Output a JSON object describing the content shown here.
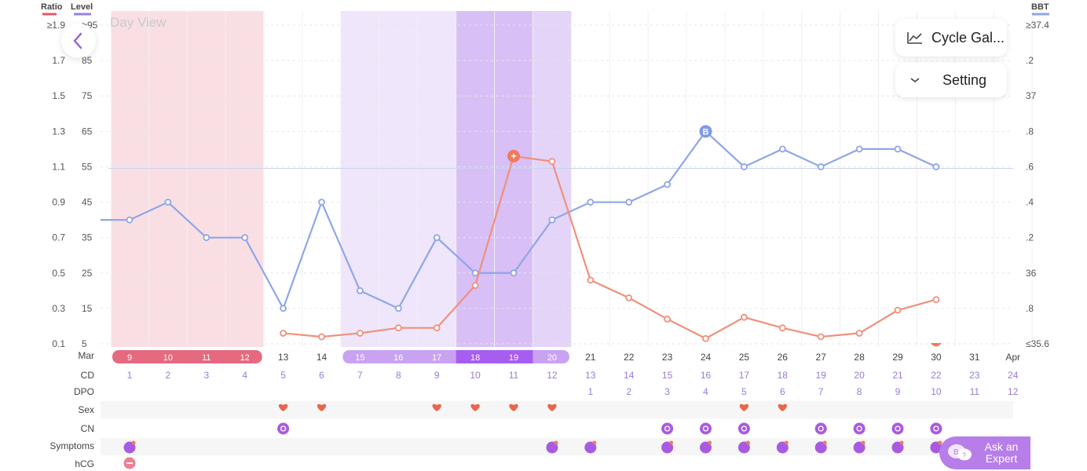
{
  "view_label": "Day View",
  "buttons": {
    "cycle_gallery": "Cycle Gal...",
    "setting": "Setting",
    "ask_expert": "Ask an Expert"
  },
  "axis_headers": {
    "ratio": "Ratio",
    "level": "Level",
    "bbt": "BBT"
  },
  "colors": {
    "ratio": "#f0907a",
    "level": "#9a80e0",
    "bbt": "#8fa6e6",
    "period": "#e5697f",
    "fertile": "#c9a3f2",
    "peak": "#a75df0"
  },
  "row_labels": {
    "date": "Mar",
    "cd": "CD",
    "dpo": "DPO",
    "sex": "Sex",
    "cn": "CN",
    "symptoms": "Symptoms",
    "hcg": "hCG"
  },
  "chart_data": {
    "type": "line",
    "x": [
      "Mar 9",
      "Mar 10",
      "Mar 11",
      "Mar 12",
      "Mar 13",
      "Mar 14",
      "Mar 15",
      "Mar 16",
      "Mar 17",
      "Mar 18",
      "Mar 19",
      "Mar 20",
      "Mar 21",
      "Mar 22",
      "Mar 23",
      "Mar 24",
      "Mar 25",
      "Mar 26",
      "Mar 27",
      "Mar 28",
      "Mar 29",
      "Mar 30",
      "Mar 31",
      "Apr"
    ],
    "date_labels": [
      "9",
      "10",
      "11",
      "12",
      "13",
      "14",
      "15",
      "16",
      "17",
      "18",
      "19",
      "20",
      "21",
      "22",
      "23",
      "24",
      "25",
      "26",
      "27",
      "28",
      "29",
      "30",
      "31",
      "Apr"
    ],
    "cd": [
      "1",
      "2",
      "3",
      "4",
      "5",
      "6",
      "7",
      "8",
      "9",
      "10",
      "11",
      "12",
      "13",
      "14",
      "15",
      "16",
      "17",
      "18",
      "19",
      "20",
      "21",
      "22",
      "23",
      "24"
    ],
    "dpo": [
      "",
      "",
      "",
      "",
      "",
      "",
      "",
      "",
      "",
      "",
      "",
      "",
      "1",
      "2",
      "3",
      "4",
      "5",
      "6",
      "7",
      "8",
      "9",
      "10",
      "11",
      "12"
    ],
    "ratio_ticks": [
      "≥1.9",
      "1.7",
      "1.5",
      "1.3",
      "1.1",
      "0.9",
      "0.7",
      "0.5",
      "0.3",
      "0.1"
    ],
    "level_ticks": [
      ">95",
      "85",
      "75",
      "65",
      "55",
      "45",
      "35",
      "25",
      "15",
      "5"
    ],
    "bbt_ticks": [
      "≥37.4",
      ".2",
      "37",
      ".8",
      ".6",
      ".4",
      ".2",
      "36",
      ".8",
      "≤35.6"
    ],
    "ylim_ratio": [
      0.1,
      1.9
    ],
    "ylim_bbt": [
      35.6,
      37.4
    ],
    "coverline_bbt": 36.6,
    "series": [
      {
        "values": [
          null,
          null,
          null,
          null,
          0.16,
          0.14,
          0.16,
          0.19,
          0.19,
          0.43,
          1.16,
          1.13,
          0.46,
          0.36,
          0.24,
          0.13,
          0.25,
          0.19,
          0.14,
          0.16,
          0.29,
          0.35,
          null,
          null
        ]
      },
      {
        "values": [
          36.3,
          36.4,
          36.2,
          36.2,
          35.8,
          36.4,
          35.9,
          35.8,
          36.2,
          36.0,
          36.0,
          36.3,
          36.4,
          36.4,
          36.5,
          36.8,
          36.6,
          36.7,
          36.6,
          36.7,
          36.7,
          36.6,
          null,
          null
        ]
      }
    ],
    "bbt_start": 36.3,
    "period_days": [
      0,
      1,
      2,
      3
    ],
    "fertile_days": [
      6,
      7,
      8,
      9,
      10,
      11
    ],
    "peak_days": [
      9,
      10
    ],
    "ratio_peak_day": 10,
    "bbt_marker_day": 15,
    "bbt_marker_label": "B",
    "sex_days": [
      4,
      5,
      8,
      9,
      10,
      11,
      16,
      17
    ],
    "cn_days": [
      4,
      14,
      15,
      16,
      18,
      19,
      20,
      21
    ],
    "symptom_days": [
      0,
      11,
      12,
      14,
      15,
      16,
      17,
      18,
      19,
      20,
      21
    ],
    "hcg_days": [
      0
    ]
  }
}
